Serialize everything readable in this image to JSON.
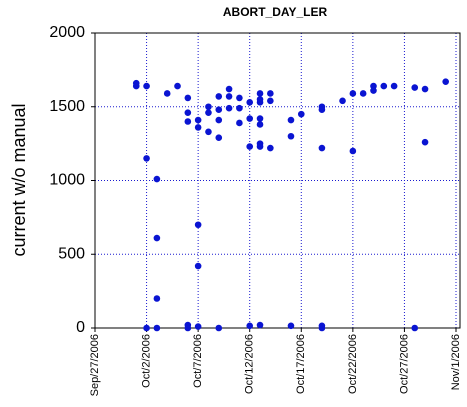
{
  "chart_data": {
    "type": "scatter",
    "title": "ABORT_DAY_LER",
    "y_label": "current w/o manual",
    "x": [
      "2006-10-01",
      "2006-10-01",
      "2006-10-02",
      "2006-10-02",
      "2006-10-02",
      "2006-10-03",
      "2006-10-03",
      "2006-10-03",
      "2006-10-03",
      "2006-10-04",
      "2006-10-05",
      "2006-10-06",
      "2006-10-06",
      "2006-10-06",
      "2006-10-06",
      "2006-10-06",
      "2006-10-07",
      "2006-10-07",
      "2006-10-07",
      "2006-10-07",
      "2006-10-07",
      "2006-10-08",
      "2006-10-08",
      "2006-10-08",
      "2006-10-09",
      "2006-10-09",
      "2006-10-09",
      "2006-10-09",
      "2006-10-09",
      "2006-10-10",
      "2006-10-10",
      "2006-10-10",
      "2006-10-11",
      "2006-10-11",
      "2006-10-11",
      "2006-10-12",
      "2006-10-12",
      "2006-10-12",
      "2006-10-12",
      "2006-10-13",
      "2006-10-13",
      "2006-10-13",
      "2006-10-13",
      "2006-10-13",
      "2006-10-13",
      "2006-10-13",
      "2006-10-13",
      "2006-10-14",
      "2006-10-14",
      "2006-10-14",
      "2006-10-16",
      "2006-10-16",
      "2006-10-16",
      "2006-10-17",
      "2006-10-19",
      "2006-10-19",
      "2006-10-19",
      "2006-10-19",
      "2006-10-19",
      "2006-10-21",
      "2006-10-22",
      "2006-10-22",
      "2006-10-23",
      "2006-10-24",
      "2006-10-24",
      "2006-10-25",
      "2006-10-26",
      "2006-10-28",
      "2006-10-28",
      "2006-10-29",
      "2006-10-29",
      "2006-10-31"
    ],
    "values": [
      1660,
      1640,
      1640,
      1150,
      0,
      1010,
      610,
      200,
      0,
      1590,
      1640,
      1560,
      1460,
      1400,
      20,
      0,
      1410,
      1360,
      700,
      420,
      10,
      1460,
      1500,
      1330,
      1570,
      1480,
      1410,
      1290,
      0,
      1620,
      1570,
      1490,
      1560,
      1490,
      1390,
      1530,
      1420,
      1230,
      15,
      1590,
      1550,
      1530,
      1420,
      1380,
      1250,
      1230,
      20,
      1590,
      1540,
      1220,
      1410,
      1300,
      15,
      1450,
      1500,
      1480,
      1220,
      15,
      0,
      1540,
      1590,
      1200,
      1590,
      1640,
      1610,
      1640,
      1640,
      1630,
      0,
      1620,
      1260,
      1670
    ],
    "color": "#0a14d2",
    "xlim": [
      "2006-09-27",
      "2006-11-01"
    ],
    "xticks": [
      {
        "value": "2006-09-27",
        "label": "Sep/27/2006"
      },
      {
        "value": "2006-10-02",
        "label": "Oct/2/2006"
      },
      {
        "value": "2006-10-07",
        "label": "Oct/7/2006"
      },
      {
        "value": "2006-10-12",
        "label": "Oct/12/2006"
      },
      {
        "value": "2006-10-17",
        "label": "Oct/17/2006"
      },
      {
        "value": "2006-10-22",
        "label": "Oct/22/2006"
      },
      {
        "value": "2006-10-27",
        "label": "Oct/27/2006"
      },
      {
        "value": "2006-11-01",
        "label": "Nov/1/2006"
      }
    ],
    "ylim": [
      0,
      2000
    ],
    "yticks": [
      0,
      500,
      1000,
      1500,
      2000
    ],
    "grid": true
  }
}
